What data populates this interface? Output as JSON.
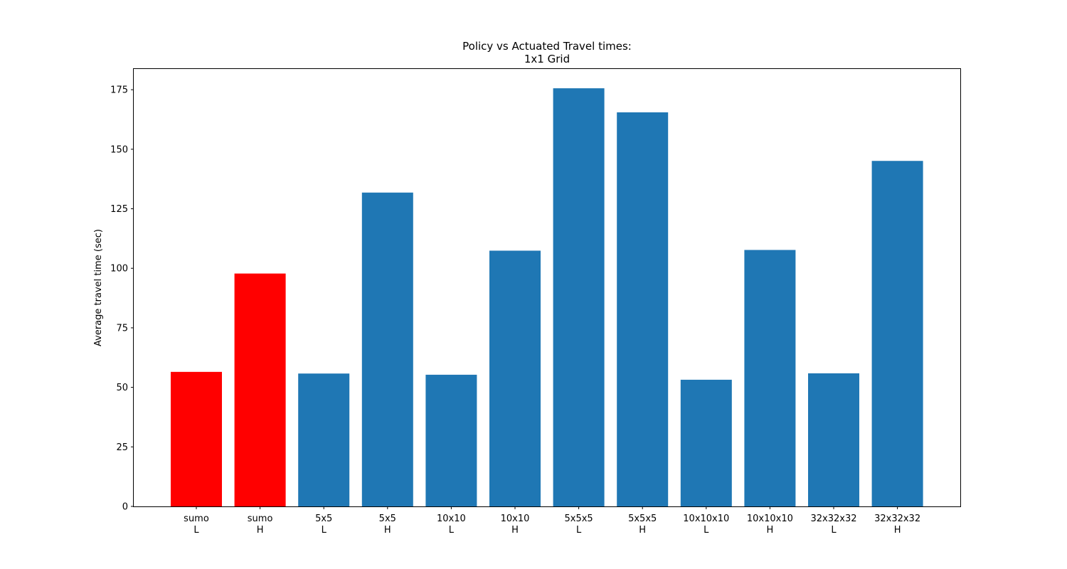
{
  "chart_data": {
    "type": "bar",
    "title": [
      "Policy vs Actuated Travel times:",
      "1x1 Grid"
    ],
    "xlabel": "",
    "ylabel": "Average travel time (sec)",
    "ylim": [
      0,
      184
    ],
    "yticks": [
      0,
      25,
      50,
      75,
      100,
      125,
      150,
      175
    ],
    "grid": false,
    "categories": [
      [
        "sumo",
        "L"
      ],
      [
        "sumo",
        "H"
      ],
      [
        "5x5",
        "L"
      ],
      [
        "5x5",
        "H"
      ],
      [
        "10x10",
        "L"
      ],
      [
        "10x10",
        "H"
      ],
      [
        "5x5x5",
        "L"
      ],
      [
        "5x5x5",
        "H"
      ],
      [
        "10x10x10",
        "L"
      ],
      [
        "10x10x10",
        "H"
      ],
      [
        "32x32x32",
        "L"
      ],
      [
        "32x32x32",
        "H"
      ]
    ],
    "values": [
      56.5,
      97.8,
      55.8,
      131.8,
      55.3,
      107.4,
      175.6,
      165.5,
      53.2,
      107.7,
      55.9,
      145.1
    ],
    "colors": [
      "#ff0000",
      "#ff0000",
      "#1f77b4",
      "#1f77b4",
      "#1f77b4",
      "#1f77b4",
      "#1f77b4",
      "#1f77b4",
      "#1f77b4",
      "#1f77b4",
      "#1f77b4",
      "#1f77b4"
    ]
  }
}
